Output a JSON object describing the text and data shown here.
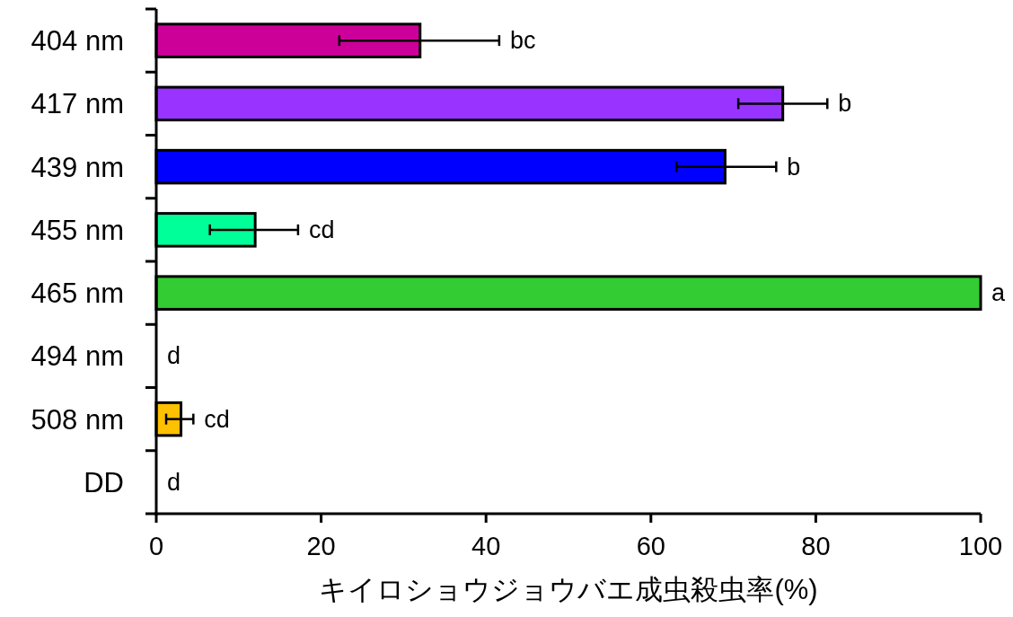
{
  "chart_data": {
    "type": "bar",
    "orientation": "horizontal",
    "categories": [
      "404 nm",
      "417 nm",
      "439 nm",
      "455 nm",
      "465 nm",
      "494 nm",
      "508 nm",
      "DD"
    ],
    "values": [
      32,
      76,
      69,
      12,
      100,
      0,
      3,
      0
    ],
    "colors": [
      "#cc0099",
      "#9933ff",
      "#0000ff",
      "#00ff99",
      "#33cc33",
      "#ffc000",
      "#ffc000",
      "#808080"
    ],
    "errors": [
      [
        22.2,
        41.6
      ],
      [
        70.6,
        81.4
      ],
      [
        63.1,
        75.2
      ],
      [
        6.5,
        17.2
      ],
      null,
      null,
      [
        1.2,
        4.5
      ],
      null
    ],
    "xlim": [
      0,
      100
    ],
    "xticks": [
      0,
      20,
      40,
      60,
      80,
      100
    ],
    "xlabel": "キイロショウジョウバエ成虫殺虫率(%)",
    "annotations": [
      {
        "text": "bc",
        "x": 41.6,
        "y": "404 nm"
      },
      {
        "text": "b",
        "x": 81.4,
        "y": "417 nm"
      },
      {
        "text": "b",
        "x": 75.2,
        "y": "439 nm"
      },
      {
        "text": "cd",
        "x": 17.2,
        "y": "455 nm"
      },
      {
        "text": "a",
        "x": 100,
        "y": "465 nm"
      },
      {
        "text": "d",
        "x": 0,
        "y": "494 nm"
      },
      {
        "text": "cd",
        "x": 4.5,
        "y": "508 nm"
      },
      {
        "text": "d",
        "x": 0,
        "y": "DD"
      }
    ]
  }
}
